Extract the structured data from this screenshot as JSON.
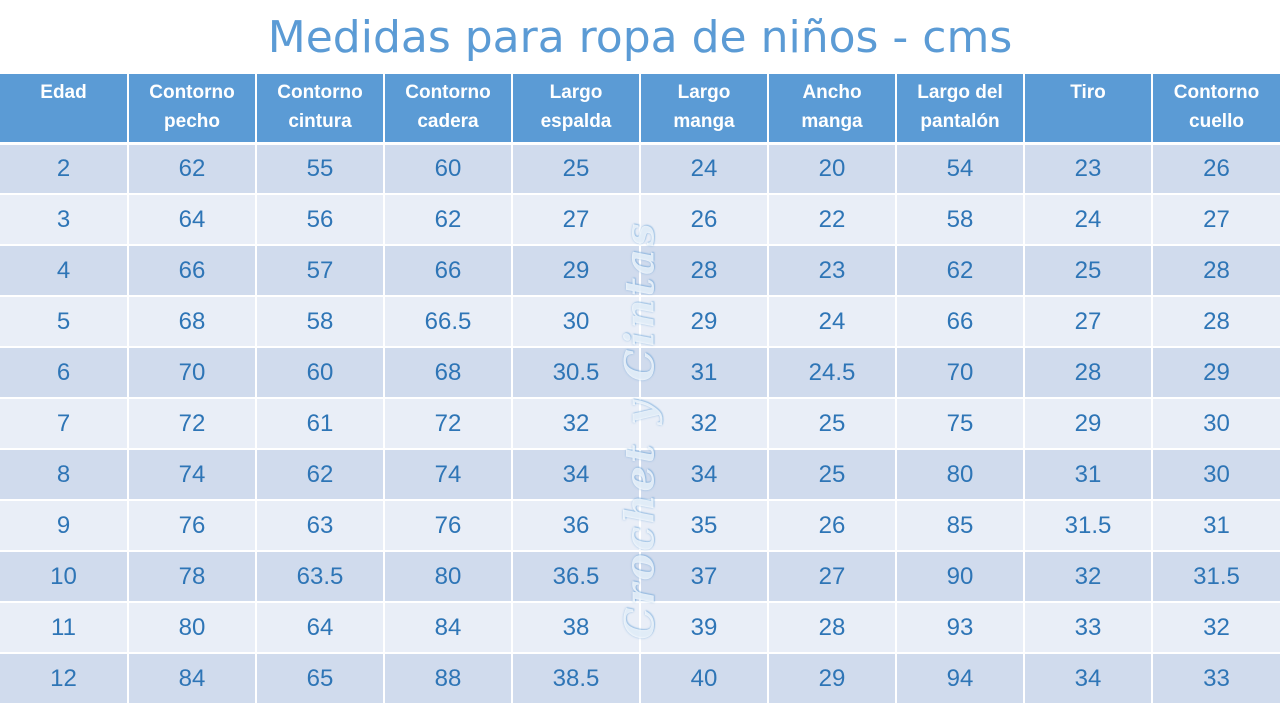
{
  "title": "Medidas para ropa de niños - cms",
  "watermark": "Crochet y Cintas",
  "colors": {
    "header_bg": "#5b9bd5",
    "title_text": "#5b9bd5",
    "cell_text": "#2e75b6",
    "row_dark": "#d0dbed",
    "row_light": "#e9eef7"
  },
  "table": {
    "headers": [
      "Edad",
      "Contorno\npecho",
      "Contorno\ncintura",
      "Contorno\ncadera",
      "Largo\nespalda",
      "Largo\nmanga",
      "Ancho\nmanga",
      "Largo del\npantalón",
      "Tiro",
      "Contorno\ncuello"
    ],
    "rows": [
      [
        "2",
        "62",
        "55",
        "60",
        "25",
        "24",
        "20",
        "54",
        "23",
        "26"
      ],
      [
        "3",
        "64",
        "56",
        "62",
        "27",
        "26",
        "22",
        "58",
        "24",
        "27"
      ],
      [
        "4",
        "66",
        "57",
        "66",
        "29",
        "28",
        "23",
        "62",
        "25",
        "28"
      ],
      [
        "5",
        "68",
        "58",
        "66.5",
        "30",
        "29",
        "24",
        "66",
        "27",
        "28"
      ],
      [
        "6",
        "70",
        "60",
        "68",
        "30.5",
        "31",
        "24.5",
        "70",
        "28",
        "29"
      ],
      [
        "7",
        "72",
        "61",
        "72",
        "32",
        "32",
        "25",
        "75",
        "29",
        "30"
      ],
      [
        "8",
        "74",
        "62",
        "74",
        "34",
        "34",
        "25",
        "80",
        "31",
        "30"
      ],
      [
        "9",
        "76",
        "63",
        "76",
        "36",
        "35",
        "26",
        "85",
        "31.5",
        "31"
      ],
      [
        "10",
        "78",
        "63.5",
        "80",
        "36.5",
        "37",
        "27",
        "90",
        "32",
        "31.5"
      ],
      [
        "11",
        "80",
        "64",
        "84",
        "38",
        "39",
        "28",
        "93",
        "33",
        "32"
      ],
      [
        "12",
        "84",
        "65",
        "88",
        "38.5",
        "40",
        "29",
        "94",
        "34",
        "33"
      ]
    ]
  }
}
